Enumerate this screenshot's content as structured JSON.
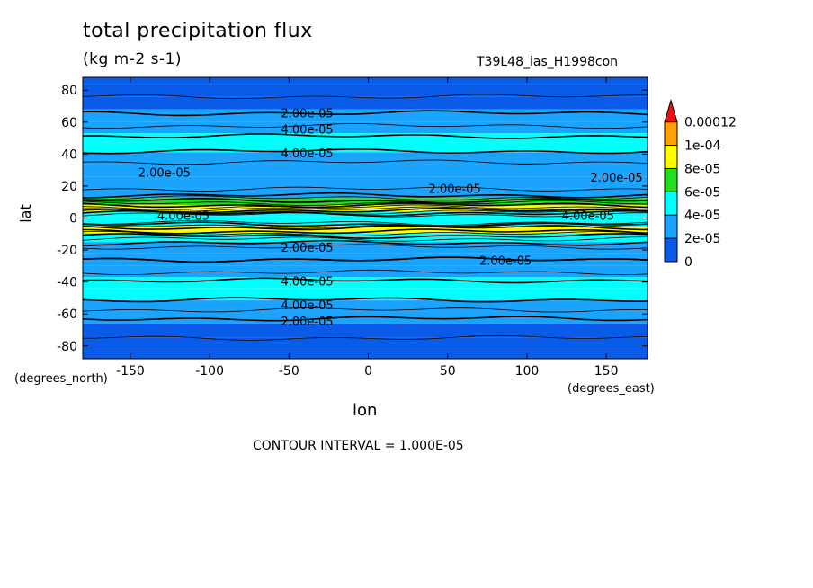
{
  "chart_data": {
    "type": "heatmap",
    "title": "total precipitation flux",
    "units": "(kg m-2 s-1)",
    "experiment": "T39L48_ias_H1998con",
    "xlabel": "lon",
    "ylabel": "lat",
    "x_units": "(degrees_east)",
    "y_units": "(degrees_north)",
    "x_ticks": [
      -150,
      -100,
      -50,
      0,
      50,
      100,
      150
    ],
    "y_ticks": [
      80,
      60,
      40,
      20,
      0,
      -20,
      -40,
      -60,
      -80
    ],
    "xlim": [
      -180,
      176
    ],
    "ylim": [
      -88,
      88
    ],
    "contour_interval_text": "CONTOUR INTERVAL = 1.000E-05",
    "colorbar": {
      "levels": [
        "0",
        "2e-05",
        "4e-05",
        "6e-05",
        "8e-05",
        "1e-04",
        "0.00012"
      ],
      "colors": [
        "#0a5ce8",
        "#1aa3ff",
        "#00ffff",
        "#22dd22",
        "#ffff00",
        "#ffa000",
        "#ee1111"
      ]
    },
    "zonal_profile": [
      {
        "lat": 88,
        "value": 6e-06
      },
      {
        "lat": 80,
        "value": 8e-06
      },
      {
        "lat": 72,
        "value": 1.2e-05
      },
      {
        "lat": 64,
        "value": 2.2e-05
      },
      {
        "lat": 56,
        "value": 3.2e-05
      },
      {
        "lat": 50,
        "value": 4.2e-05
      },
      {
        "lat": 44,
        "value": 4.3e-05
      },
      {
        "lat": 38,
        "value": 3.5e-05
      },
      {
        "lat": 30,
        "value": 2.2e-05
      },
      {
        "lat": 22,
        "value": 2.4e-05
      },
      {
        "lat": 15,
        "value": 3.5e-05
      },
      {
        "lat": 10,
        "value": 6.5e-05
      },
      {
        "lat": 6,
        "value": 9.5e-05
      },
      {
        "lat": 2,
        "value": 5e-05
      },
      {
        "lat": 0,
        "value": 4.2e-05
      },
      {
        "lat": -3,
        "value": 5e-05
      },
      {
        "lat": -7,
        "value": 9e-05
      },
      {
        "lat": -12,
        "value": 5.5e-05
      },
      {
        "lat": -18,
        "value": 3e-05
      },
      {
        "lat": -26,
        "value": 2e-05
      },
      {
        "lat": -34,
        "value": 3e-05
      },
      {
        "lat": -40,
        "value": 4.2e-05
      },
      {
        "lat": -48,
        "value": 4.4e-05
      },
      {
        "lat": -55,
        "value": 3.5e-05
      },
      {
        "lat": -62,
        "value": 2.1e-05
      },
      {
        "lat": -70,
        "value": 1.2e-05
      },
      {
        "lat": -80,
        "value": 8e-06
      },
      {
        "lat": -88,
        "value": 5e-06
      }
    ],
    "contour_labels": [
      {
        "text": "2.00e-05",
        "lon": -55,
        "lat": 64
      },
      {
        "text": "4.00e-05",
        "lon": -55,
        "lat": 54
      },
      {
        "text": "4.00e-05",
        "lon": -55,
        "lat": 39
      },
      {
        "text": "2.00e-05",
        "lon": -145,
        "lat": 27
      },
      {
        "text": "2.00e-05",
        "lon": 38,
        "lat": 17
      },
      {
        "text": "2.00e-05",
        "lon": 140,
        "lat": 24
      },
      {
        "text": "4.00e-05",
        "lon": -133,
        "lat": 0
      },
      {
        "text": "4.00e-05",
        "lon": 122,
        "lat": 0
      },
      {
        "text": "2.00e-05",
        "lon": -55,
        "lat": -20
      },
      {
        "text": "2.00e-05",
        "lon": 70,
        "lat": -28
      },
      {
        "text": "4.00e-05",
        "lon": -55,
        "lat": -41
      },
      {
        "text": "4.00e-05",
        "lon": -55,
        "lat": -56
      },
      {
        "text": "2.00e-05",
        "lon": -55,
        "lat": -66
      }
    ]
  }
}
